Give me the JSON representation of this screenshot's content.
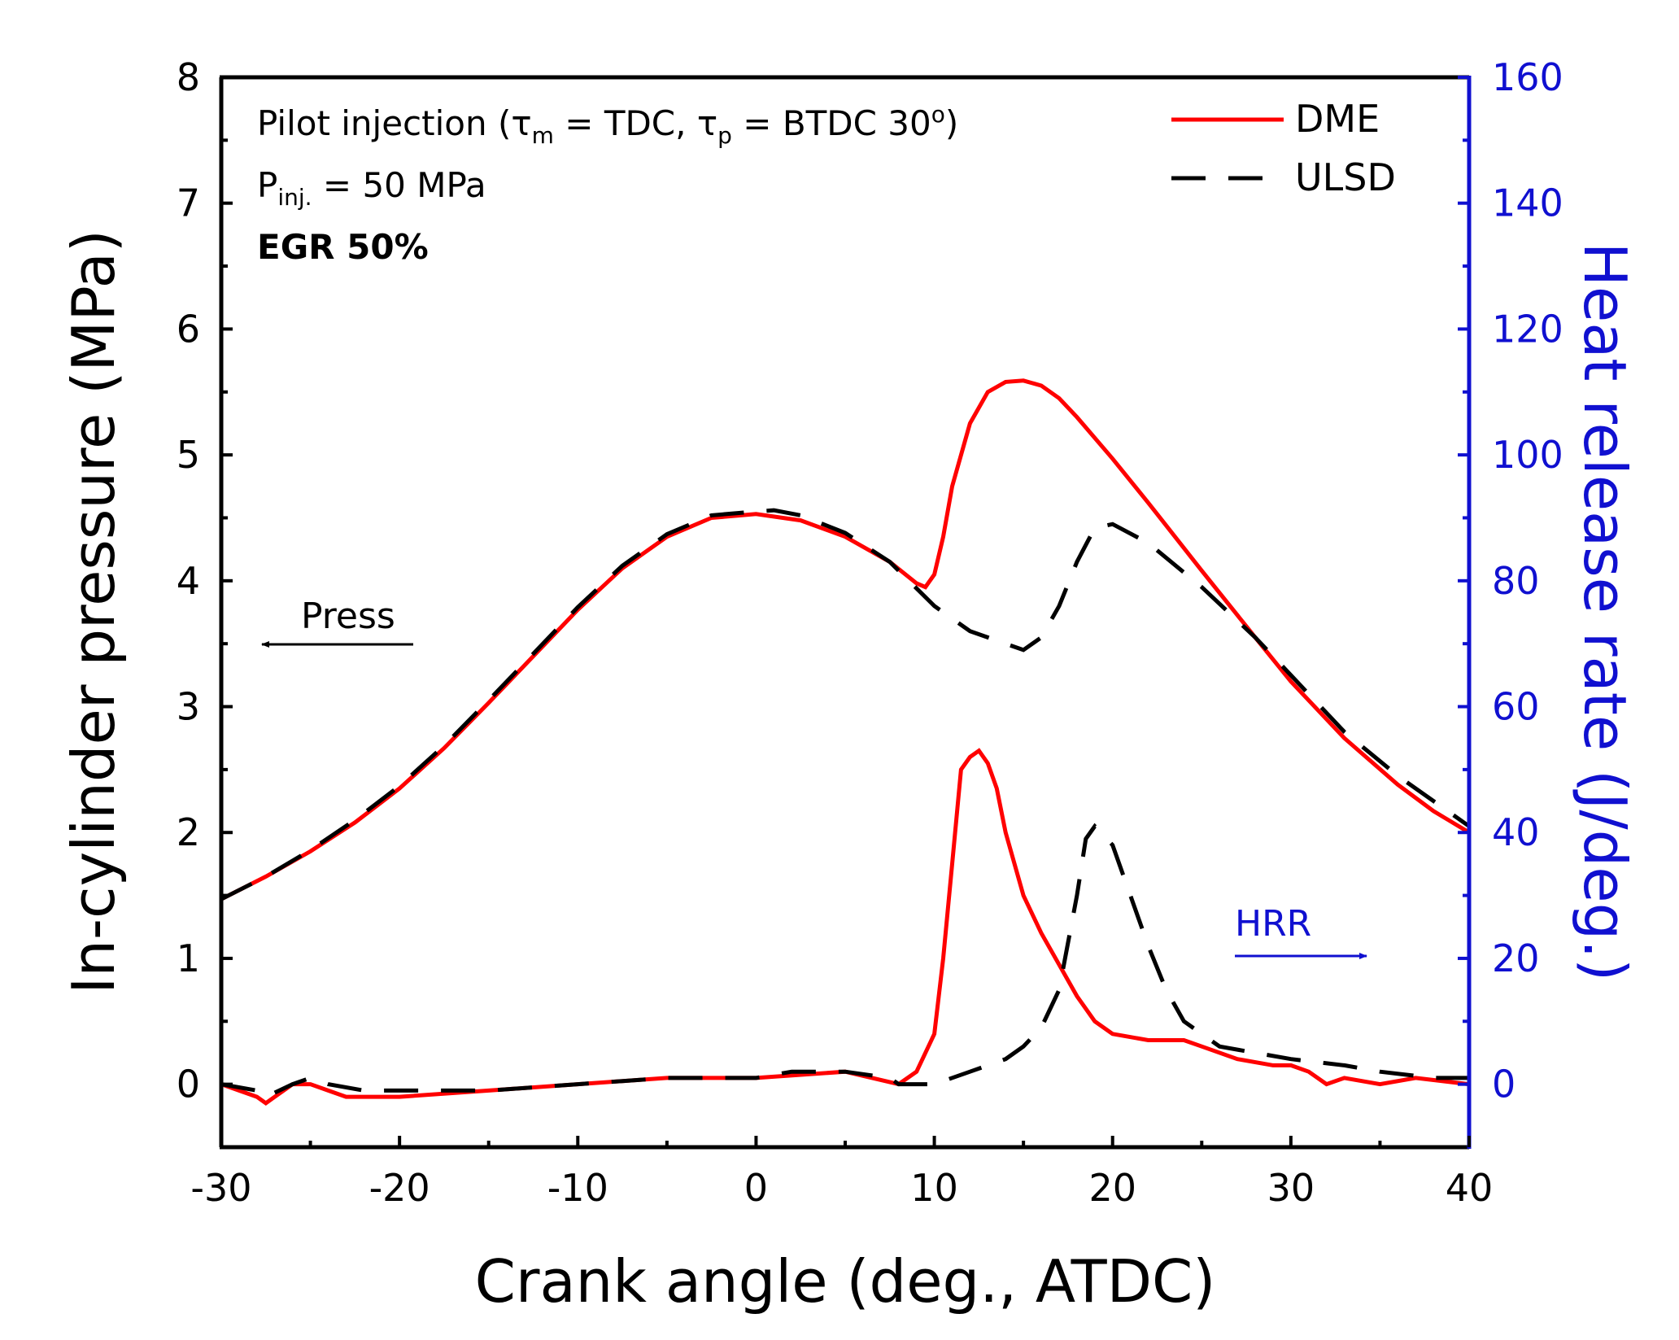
{
  "chart_data": {
    "type": "line",
    "title": "",
    "xlabel": "Crank angle (deg., ATDC)",
    "ylabel_left": "In-cylinder pressure (MPa)",
    "ylabel_right": "Heat release rate (J/deg.)",
    "xlim": [
      -30,
      40
    ],
    "ylim_left": [
      -0.5,
      8
    ],
    "ylim_right": [
      -10,
      160
    ],
    "x_ticks": [
      "-30",
      "-20",
      "-10",
      "0",
      "10",
      "20",
      "30",
      "40"
    ],
    "y_left_ticks": [
      "0",
      "1",
      "2",
      "3",
      "4",
      "5",
      "6",
      "7",
      "8"
    ],
    "y_right_ticks": [
      "0",
      "20",
      "40",
      "60",
      "80",
      "100",
      "120",
      "140",
      "160"
    ],
    "grid": false,
    "legend_position": "top-right",
    "legend": [
      "DME",
      "ULSD"
    ],
    "annotations": {
      "line1": {
        "prefix": "Pilot injection (",
        "tau": "τ",
        "m_sub": "m",
        "mid": " = TDC, ",
        "p_sub": "p",
        "suffix_a": " = BTDC 30",
        "deg": "o",
        "suffix_b": ")"
      },
      "line2": {
        "p": "P",
        "sub": "inj.",
        "rest": " = 50 MPa"
      },
      "line3": "EGR 50%",
      "press_arrow": "Press",
      "hrr_arrow": "HRR"
    },
    "colors": {
      "dme": "#ff0000",
      "ulsd": "#000000",
      "right_axis": "#1010d0"
    },
    "series": [
      {
        "name": "DME",
        "quantity": "pressure",
        "axis": "left",
        "x": [
          -30,
          -27.5,
          -25,
          -22.5,
          -20,
          -17.5,
          -15,
          -12.5,
          -10,
          -7.5,
          -5,
          -2.5,
          0,
          2.5,
          5,
          7.5,
          9,
          9.5,
          10,
          10.5,
          11,
          12,
          13,
          14,
          15,
          16,
          17,
          18,
          20,
          22,
          25,
          28,
          30,
          33,
          36,
          38,
          40
        ],
        "values": [
          1.47,
          1.65,
          1.85,
          2.08,
          2.35,
          2.67,
          3.03,
          3.4,
          3.77,
          4.1,
          4.35,
          4.5,
          4.53,
          4.48,
          4.35,
          4.15,
          3.98,
          3.95,
          4.05,
          4.35,
          4.75,
          5.25,
          5.5,
          5.58,
          5.59,
          5.55,
          5.45,
          5.3,
          4.97,
          4.62,
          4.08,
          3.55,
          3.2,
          2.75,
          2.38,
          2.17,
          2.0
        ]
      },
      {
        "name": "ULSD",
        "quantity": "pressure",
        "axis": "left",
        "x": [
          -30,
          -27.5,
          -25,
          -22.5,
          -20,
          -17.5,
          -15,
          -12.5,
          -10,
          -7.5,
          -5,
          -2.5,
          0,
          1,
          2.5,
          5,
          7.5,
          10,
          12,
          14,
          15,
          16,
          17,
          18,
          19,
          20,
          22,
          25,
          28,
          30,
          33,
          36,
          38,
          40
        ],
        "values": [
          1.47,
          1.65,
          1.86,
          2.1,
          2.37,
          2.69,
          3.05,
          3.42,
          3.79,
          4.12,
          4.37,
          4.52,
          4.55,
          4.56,
          4.52,
          4.38,
          4.15,
          3.8,
          3.6,
          3.5,
          3.45,
          3.55,
          3.8,
          4.15,
          4.42,
          4.45,
          4.3,
          3.95,
          3.55,
          3.25,
          2.8,
          2.45,
          2.25,
          2.05
        ]
      },
      {
        "name": "DME",
        "quantity": "heat release rate",
        "axis": "right",
        "x": [
          -30,
          -29,
          -28,
          -27.5,
          -27,
          -26,
          -25,
          -24,
          -23,
          -22,
          -20,
          -15,
          -10,
          -5,
          0,
          5,
          8,
          9,
          10,
          10.5,
          11,
          11.5,
          12,
          12.5,
          13,
          13.5,
          14,
          15,
          16,
          17,
          18,
          19,
          20,
          22,
          24,
          25,
          27,
          29,
          30,
          31,
          32,
          33,
          35,
          37,
          40
        ],
        "values": [
          0,
          -1,
          -2,
          -3,
          -2,
          0,
          0,
          -1,
          -2,
          -2,
          -2,
          -1,
          0,
          1,
          1,
          2,
          0,
          2,
          8,
          20,
          35,
          50,
          52,
          53,
          51,
          47,
          40,
          30,
          24,
          19,
          14,
          10,
          8,
          7,
          7,
          6,
          4,
          3,
          3,
          2,
          0,
          1,
          0,
          1,
          0
        ]
      },
      {
        "name": "ULSD",
        "quantity": "heat release rate",
        "axis": "right",
        "x": [
          -30,
          -28,
          -27.5,
          -26,
          -25,
          -24,
          -22,
          -20,
          -15,
          -10,
          -5,
          0,
          2,
          5,
          7.5,
          8,
          10,
          12,
          14,
          15,
          16,
          17,
          18,
          18.5,
          19,
          20,
          21,
          22,
          23,
          24,
          26,
          28,
          30,
          33,
          35,
          38,
          40
        ],
        "values": [
          0,
          -1,
          -2,
          0,
          1,
          0,
          -1,
          -1,
          -1,
          0,
          1,
          1,
          2,
          2,
          1,
          0,
          0,
          2,
          4,
          6,
          9,
          15,
          30,
          39,
          41,
          38,
          30,
          22,
          15,
          10,
          6,
          5,
          4,
          3,
          2,
          1,
          1
        ]
      }
    ]
  }
}
